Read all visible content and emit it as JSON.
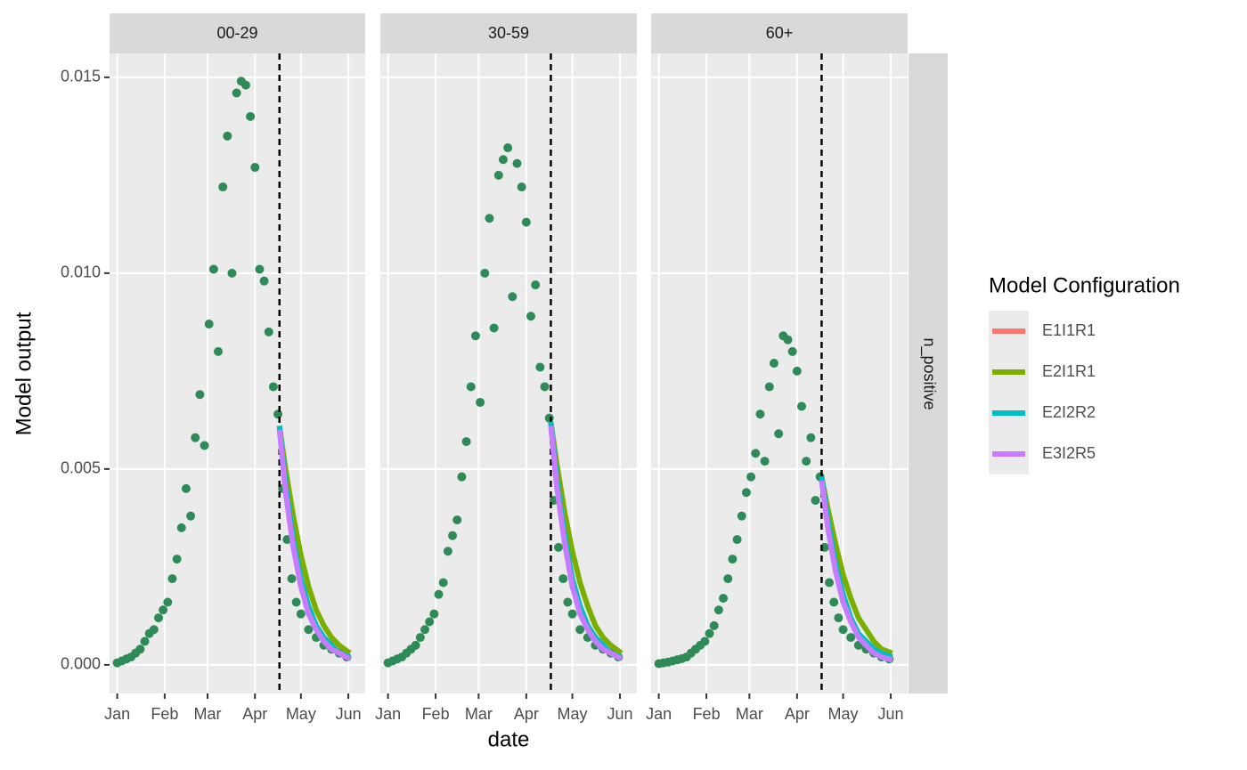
{
  "chart_data": {
    "type": "line",
    "xlabel": "date",
    "ylabel": "Model output",
    "legend_title": "Model Configuration",
    "row_strip": "n_positive",
    "xlim": [
      -5,
      162
    ],
    "xticks": [
      {
        "value": 0,
        "label": "Jan"
      },
      {
        "value": 31,
        "label": "Feb"
      },
      {
        "value": 59,
        "label": "Mar"
      },
      {
        "value": 90,
        "label": "Apr"
      },
      {
        "value": 120,
        "label": "May"
      },
      {
        "value": 151,
        "label": "Jun"
      }
    ],
    "ylim": [
      -0.00073,
      0.01561
    ],
    "yticks": [
      {
        "value": 0,
        "label": "0.000"
      },
      {
        "value": 0.005,
        "label": "0.005"
      },
      {
        "value": 0.01,
        "label": "0.010"
      },
      {
        "value": 0.015,
        "label": "0.015"
      }
    ],
    "grid": true,
    "vline": 106,
    "point_color": "#2e8b57",
    "series": [
      {
        "name": "E1I1R1",
        "color": "#F8766D"
      },
      {
        "name": "E2I1R1",
        "color": "#7CAE00"
      },
      {
        "name": "E2I2R2",
        "color": "#00BFC4"
      },
      {
        "name": "E3I2R5",
        "color": "#C77CFF"
      }
    ],
    "x": [
      0,
      3,
      6,
      9,
      12,
      15,
      18,
      21,
      24,
      27,
      30,
      33,
      36,
      39,
      42,
      45,
      48,
      51,
      54,
      57,
      60,
      63,
      66,
      69,
      72,
      75,
      78,
      81,
      84,
      87,
      90,
      93,
      96,
      99,
      102,
      105,
      108,
      111,
      114,
      117,
      120,
      125,
      130,
      135,
      140,
      145,
      150
    ],
    "model_x": [
      106,
      110,
      115,
      120,
      125,
      130,
      135,
      140,
      145,
      152
    ],
    "panels": [
      {
        "title": "00-29",
        "values": [
          5e-05,
          0.0001,
          0.00015,
          0.0002,
          0.0003,
          0.0004,
          0.0006,
          0.0008,
          0.0009,
          0.0012,
          0.0014,
          0.0016,
          0.0022,
          0.0027,
          0.0035,
          0.0045,
          0.0038,
          0.0058,
          0.0069,
          0.0056,
          0.0087,
          0.0101,
          0.008,
          0.0122,
          0.0135,
          0.01,
          0.0146,
          0.0149,
          0.0148,
          0.014,
          0.0127,
          0.0101,
          0.0098,
          0.0085,
          0.0071,
          0.0064,
          0.0045,
          0.0032,
          0.0022,
          0.0016,
          0.0013,
          0.0009,
          0.0007,
          0.0005,
          0.0004,
          0.0003,
          0.0002
        ],
        "series": [
          {
            "values": [
              0.0061,
              0.0045,
              0.0031,
              0.0021,
              0.0014,
              0.001,
              0.0007,
              0.0005,
              0.0003,
              0.0002
            ]
          },
          {
            "values": [
              0.0061,
              0.005,
              0.0038,
              0.0028,
              0.002,
              0.0014,
              0.001,
              0.0007,
              0.0005,
              0.0003
            ]
          },
          {
            "values": [
              0.0061,
              0.0046,
              0.0032,
              0.0022,
              0.0015,
              0.001,
              0.0007,
              0.0005,
              0.0003,
              0.0002
            ]
          },
          {
            "values": [
              0.006,
              0.0044,
              0.003,
              0.002,
              0.0013,
              0.0009,
              0.0006,
              0.0004,
              0.0003,
              0.00015
            ]
          }
        ]
      },
      {
        "title": "30-59",
        "values": [
          5e-05,
          0.0001,
          0.00015,
          0.0002,
          0.0003,
          0.0004,
          0.0005,
          0.0007,
          0.0009,
          0.0011,
          0.0013,
          0.0018,
          0.0021,
          0.0029,
          0.0033,
          0.0037,
          0.0048,
          0.0057,
          0.0071,
          0.0084,
          0.0067,
          0.01,
          0.0114,
          0.0086,
          0.0125,
          0.0129,
          0.0132,
          0.0094,
          0.0128,
          0.0122,
          0.0113,
          0.0089,
          0.0097,
          0.0076,
          0.0071,
          0.0063,
          0.0042,
          0.003,
          0.0022,
          0.0016,
          0.0013,
          0.0009,
          0.0007,
          0.0005,
          0.0004,
          0.0003,
          0.0002
        ],
        "series": [
          {
            "values": [
              0.0062,
              0.0046,
              0.0032,
              0.0021,
              0.0014,
              0.001,
              0.0007,
              0.0005,
              0.0003,
              0.0002
            ]
          },
          {
            "values": [
              0.0062,
              0.0051,
              0.0039,
              0.0029,
              0.0021,
              0.0015,
              0.001,
              0.0007,
              0.0005,
              0.0003
            ]
          },
          {
            "values": [
              0.0062,
              0.0047,
              0.0033,
              0.0022,
              0.0015,
              0.001,
              0.0007,
              0.0005,
              0.0003,
              0.0002
            ]
          },
          {
            "values": [
              0.0061,
              0.0045,
              0.0031,
              0.002,
              0.0013,
              0.0009,
              0.0006,
              0.0004,
              0.0003,
              0.00015
            ]
          }
        ]
      },
      {
        "title": "60+",
        "values": [
          3e-05,
          5e-05,
          7e-05,
          0.0001,
          0.00013,
          0.00016,
          0.0002,
          0.0003,
          0.0004,
          0.0005,
          0.0006,
          0.0008,
          0.001,
          0.0014,
          0.0017,
          0.0022,
          0.0027,
          0.0032,
          0.0038,
          0.0044,
          0.0048,
          0.0054,
          0.0064,
          0.0052,
          0.0071,
          0.0077,
          0.0059,
          0.0084,
          0.0083,
          0.008,
          0.0075,
          0.0066,
          0.0052,
          0.0058,
          0.0042,
          0.0048,
          0.003,
          0.0021,
          0.0016,
          0.0012,
          0.0009,
          0.0007,
          0.0005,
          0.0004,
          0.0003,
          0.0002,
          0.00015
        ],
        "series": [
          {
            "values": [
              0.0048,
              0.0036,
              0.0025,
              0.0017,
              0.0011,
              0.0008,
              0.0005,
              0.0004,
              0.0003,
              0.0002
            ]
          },
          {
            "values": [
              0.0048,
              0.004,
              0.0031,
              0.0023,
              0.0017,
              0.0012,
              0.0009,
              0.0006,
              0.0004,
              0.0003
            ]
          },
          {
            "values": [
              0.0048,
              0.0037,
              0.0026,
              0.0018,
              0.0012,
              0.0008,
              0.0006,
              0.0004,
              0.0003,
              0.0002
            ]
          },
          {
            "values": [
              0.0047,
              0.0035,
              0.0024,
              0.0016,
              0.0011,
              0.0007,
              0.0005,
              0.0003,
              0.0002,
              0.00012
            ]
          }
        ]
      }
    ]
  }
}
